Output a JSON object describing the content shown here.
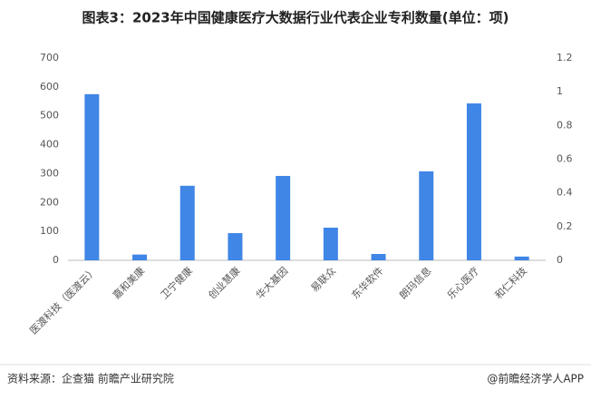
{
  "chart_data": {
    "type": "bar",
    "title": "图表3：2023年中国健康医疗大数据行业代表企业专利数量(单位：项)",
    "categories": [
      "医渡科技（医渡云）",
      "嘉和美康",
      "卫宁健康",
      "创业慧康",
      "华大基因",
      "易联众",
      "东华软件",
      "朗玛信息",
      "乐心医疗",
      "和仁科技"
    ],
    "values": [
      575,
      20,
      258,
      94,
      292,
      113,
      22,
      308,
      543,
      13
    ],
    "color": "#3f86e6",
    "ylim": [
      0,
      700
    ],
    "yticks": [
      0,
      100,
      200,
      300,
      400,
      500,
      600,
      700
    ],
    "y2lim": [
      0,
      1.2
    ],
    "y2ticks": [
      0,
      0.2,
      0.4,
      0.6,
      0.8,
      1,
      1.2
    ],
    "grid": false,
    "source": "资料来源：企查猫 前瞻产业研究院",
    "credit": "@前瞻经济学人APP"
  }
}
